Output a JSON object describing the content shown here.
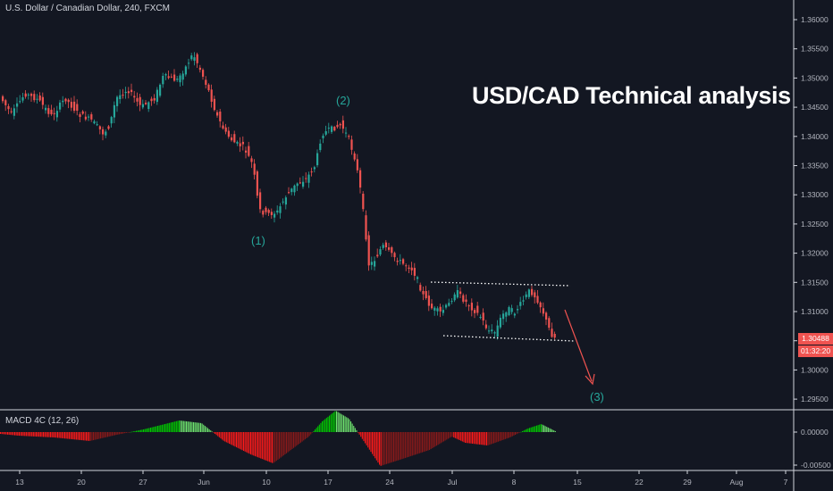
{
  "header": {
    "symbol_title": "U.S. Dollar / Canadian Dollar, 240, FXCM"
  },
  "annotation": {
    "headline": "USD/CAD Technical analysis"
  },
  "waves": [
    {
      "label": "(1)"
    },
    {
      "label": "(2)"
    },
    {
      "label": "(3)"
    }
  ],
  "price_axis": {
    "labels": [
      "1.36000",
      "1.35500",
      "1.35000",
      "1.34500",
      "1.34000",
      "1.33500",
      "1.33000",
      "1.32500",
      "1.32000",
      "1.31500",
      "1.31000",
      "1.30500",
      "1.30000",
      "1.29500"
    ],
    "current_price": "1.30488",
    "countdown": "01:32:20"
  },
  "indicator": {
    "title": "MACD 4C (12, 26)",
    "axis_labels": [
      "0.00000",
      "-0.00500"
    ]
  },
  "time_axis": {
    "labels": [
      "13",
      "20",
      "27",
      "Jun",
      "10",
      "17",
      "24",
      "Jul",
      "8",
      "15",
      "22",
      "29",
      "Aug",
      "7"
    ]
  },
  "colors": {
    "background": "#131722",
    "up_candle": "#26a69a",
    "down_candle": "#ef5350",
    "macd_positive_strong": "#00c800",
    "macd_positive_weak": "#6ee36e",
    "macd_negative_strong": "#ff1a1a",
    "macd_negative_weak": "#8b1a1a",
    "projection_arrow": "#ef5350",
    "channel_lines": "#ffffff"
  }
}
